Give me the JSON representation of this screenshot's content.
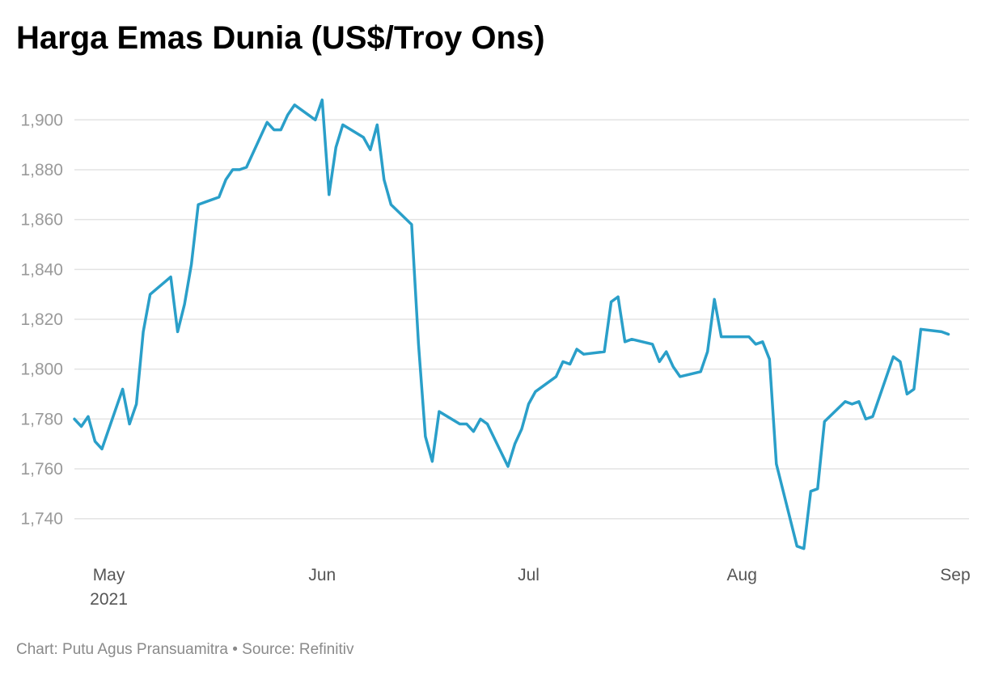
{
  "chart_data": {
    "type": "line",
    "title": "Harga Emas Dunia (US$/Troy Ons)",
    "footer": {
      "credit": "Chart: Putu Agus Pransuamitra",
      "separator": "•",
      "source": "Source: Refinitiv"
    },
    "xlabel": "",
    "ylabel": "",
    "grid": true,
    "legend": "none",
    "line_color": "#2a9fc9",
    "grid_color": "#e3e3e3",
    "ylim": [
      1725,
      1915
    ],
    "y_ticks": [
      1740,
      1760,
      1780,
      1800,
      1820,
      1840,
      1860,
      1880,
      1900
    ],
    "y_tick_labels": [
      "1,740",
      "1,760",
      "1,780",
      "1,800",
      "1,820",
      "1,840",
      "1,860",
      "1,880",
      "1,900"
    ],
    "xlim": [
      "2021-04-26",
      "2021-09-03"
    ],
    "x_ticks": [
      {
        "date": "2021-05-01",
        "label": "May",
        "sublabel": "2021"
      },
      {
        "date": "2021-06-01",
        "label": "Jun",
        "sublabel": ""
      },
      {
        "date": "2021-07-01",
        "label": "Jul",
        "sublabel": ""
      },
      {
        "date": "2021-08-01",
        "label": "Aug",
        "sublabel": ""
      },
      {
        "date": "2021-09-01",
        "label": "Sep",
        "sublabel": ""
      }
    ],
    "series": [
      {
        "x": [
          "2021-04-26",
          "2021-04-27",
          "2021-04-28",
          "2021-04-29",
          "2021-04-30",
          "2021-05-03",
          "2021-05-04",
          "2021-05-05",
          "2021-05-06",
          "2021-05-07",
          "2021-05-10",
          "2021-05-11",
          "2021-05-12",
          "2021-05-13",
          "2021-05-14",
          "2021-05-17",
          "2021-05-18",
          "2021-05-19",
          "2021-05-20",
          "2021-05-21",
          "2021-05-24",
          "2021-05-25",
          "2021-05-26",
          "2021-05-27",
          "2021-05-28",
          "2021-05-31",
          "2021-06-01",
          "2021-06-02",
          "2021-06-03",
          "2021-06-04",
          "2021-06-07",
          "2021-06-08",
          "2021-06-09",
          "2021-06-10",
          "2021-06-11",
          "2021-06-14",
          "2021-06-15",
          "2021-06-16",
          "2021-06-17",
          "2021-06-18",
          "2021-06-21",
          "2021-06-22",
          "2021-06-23",
          "2021-06-24",
          "2021-06-25",
          "2021-06-28",
          "2021-06-29",
          "2021-06-30",
          "2021-07-01",
          "2021-07-02",
          "2021-07-05",
          "2021-07-06",
          "2021-07-07",
          "2021-07-08",
          "2021-07-09",
          "2021-07-12",
          "2021-07-13",
          "2021-07-14",
          "2021-07-15",
          "2021-07-16",
          "2021-07-19",
          "2021-07-20",
          "2021-07-21",
          "2021-07-22",
          "2021-07-23",
          "2021-07-26",
          "2021-07-27",
          "2021-07-28",
          "2021-07-29",
          "2021-07-30",
          "2021-08-02",
          "2021-08-03",
          "2021-08-04",
          "2021-08-05",
          "2021-08-06",
          "2021-08-09",
          "2021-08-10",
          "2021-08-11",
          "2021-08-12",
          "2021-08-13",
          "2021-08-16",
          "2021-08-17",
          "2021-08-18",
          "2021-08-19",
          "2021-08-20",
          "2021-08-23",
          "2021-08-24",
          "2021-08-25",
          "2021-08-26",
          "2021-08-27",
          "2021-08-30",
          "2021-08-31"
        ],
        "values": [
          1780,
          1777,
          1781,
          1771,
          1768,
          1792,
          1778,
          1786,
          1815,
          1830,
          1837,
          1815,
          1826,
          1842,
          1866,
          1869,
          1876,
          1880,
          1880,
          1881,
          1899,
          1896,
          1896,
          1902,
          1906,
          1900,
          1908,
          1870,
          1889,
          1898,
          1893,
          1888,
          1898,
          1876,
          1866,
          1858,
          1810,
          1773,
          1763,
          1783,
          1778,
          1778,
          1775,
          1780,
          1778,
          1761,
          1770,
          1776,
          1786,
          1791,
          1797,
          1803,
          1802,
          1808,
          1806,
          1807,
          1827,
          1829,
          1811,
          1812,
          1810,
          1803,
          1807,
          1801,
          1797,
          1799,
          1807,
          1828,
          1813,
          1813,
          1813,
          1810,
          1811,
          1804,
          1762,
          1729,
          1728,
          1751,
          1752,
          1779,
          1787,
          1786,
          1787,
          1780,
          1781,
          1805,
          1803,
          1790,
          1792,
          1816,
          1815,
          1814
        ]
      }
    ]
  }
}
